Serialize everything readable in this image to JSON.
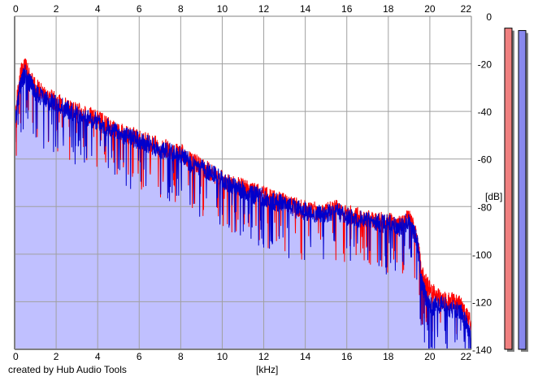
{
  "footer": {
    "credit": "created by Hub Audio Tools"
  },
  "chart_data": {
    "type": "area",
    "xlabel": "[kHz]",
    "ylabel": "[dB]",
    "xlim": [
      0,
      22
    ],
    "ylim": [
      -140,
      0
    ],
    "x_ticks": [
      0,
      2,
      4,
      6,
      8,
      10,
      12,
      14,
      16,
      18,
      20,
      22
    ],
    "y_ticks": [
      0,
      -20,
      -40,
      -60,
      -80,
      -100,
      -120,
      -140
    ],
    "grid": true,
    "colors": {
      "fill": "#c0c0ff",
      "grid": "#a0a0a0",
      "axis": "#808080",
      "meter_left": "#f08080",
      "meter_right": "#8888ee"
    },
    "series": [
      {
        "color": "#ff0000",
        "x": [
          0,
          0.3,
          0.5,
          0.8,
          1.0,
          1.5,
          2.0,
          2.5,
          3.0,
          3.5,
          4.0,
          4.5,
          5.0,
          5.5,
          6.0,
          6.5,
          7.0,
          7.5,
          8.0,
          8.5,
          9.0,
          9.5,
          10.0,
          10.5,
          11.0,
          11.5,
          12.0,
          12.5,
          13.0,
          13.5,
          14.0,
          14.5,
          15.0,
          15.5,
          16.0,
          16.5,
          17.0,
          17.5,
          18.0,
          18.5,
          19.0,
          19.4,
          19.6,
          19.8,
          20.0,
          20.5,
          21.0,
          21.5,
          22.0
        ],
        "values": [
          -42,
          -24,
          -21,
          -27,
          -30,
          -33,
          -36,
          -38,
          -40,
          -42,
          -43,
          -46,
          -48,
          -50,
          -51,
          -53,
          -55,
          -56,
          -57,
          -61,
          -63,
          -66,
          -68,
          -71,
          -72,
          -74,
          -75,
          -77,
          -78,
          -80,
          -81,
          -82,
          -82,
          -81,
          -83,
          -84,
          -85,
          -86,
          -86,
          -88,
          -85,
          -93,
          -108,
          -112,
          -115,
          -119,
          -120,
          -121,
          -130
        ]
      },
      {
        "color": "#0000cc",
        "x": [
          0,
          0.3,
          0.5,
          0.8,
          1.0,
          1.5,
          2.0,
          2.5,
          3.0,
          3.5,
          4.0,
          4.5,
          5.0,
          5.5,
          6.0,
          6.5,
          7.0,
          7.5,
          8.0,
          8.5,
          9.0,
          9.5,
          10.0,
          10.5,
          11.0,
          11.5,
          12.0,
          12.5,
          13.0,
          13.5,
          14.0,
          14.5,
          15.0,
          15.5,
          16.0,
          16.5,
          17.0,
          17.5,
          18.0,
          18.5,
          19.0,
          19.4,
          19.6,
          19.8,
          20.0,
          20.5,
          21.0,
          21.5,
          22.0
        ],
        "values": [
          -45,
          -28,
          -24,
          -29,
          -32,
          -35,
          -37,
          -39,
          -41,
          -43,
          -44,
          -47,
          -49,
          -51,
          -52,
          -54,
          -56,
          -57,
          -58,
          -62,
          -64,
          -66,
          -69,
          -71,
          -73,
          -75,
          -76,
          -78,
          -79,
          -81,
          -82,
          -83,
          -83,
          -82,
          -84,
          -85,
          -86,
          -87,
          -87,
          -89,
          -86,
          -95,
          -112,
          -118,
          -122,
          -121,
          -123,
          -124,
          -135
        ]
      }
    ],
    "level_meters": {
      "left": -5,
      "right": -6
    }
  }
}
